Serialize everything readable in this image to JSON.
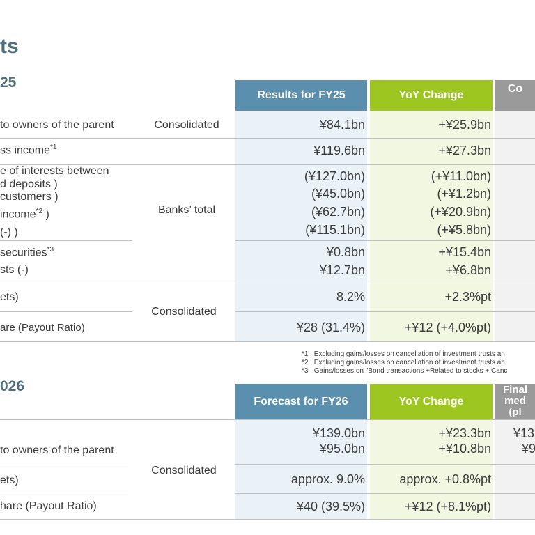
{
  "page_title": "ts",
  "section1": {
    "title": "25",
    "headers": [
      "Results for FY25",
      "YoY Change",
      "Co"
    ],
    "rows": [
      {
        "label": "to owners of the parent",
        "scope": "Consolidated",
        "value": "¥84.1bn",
        "change": "+¥25.9bn"
      },
      {
        "label": "ss income",
        "label_sup": "*1",
        "value": "¥119.6bn",
        "change": "+¥27.3bn"
      },
      {
        "label": "e of interests between",
        "label2": "d deposits )",
        "label3": "customers )",
        "label4": "income",
        "label4_sup": "*2",
        "label4_tail": " )",
        "label5": "(-) )",
        "scope": "Banks’ total",
        "values": [
          "(¥127.0bn)",
          "(¥45.0bn)",
          "(¥62.7bn)",
          "(¥115.1bn)"
        ],
        "changes": [
          "(+¥11.0bn)",
          "(+¥1.2bn)",
          "(+¥20.9bn)",
          "(+¥5.8bn)"
        ]
      },
      {
        "label": "securities",
        "label_sup": "*3",
        "label2": "sts (-)",
        "values": [
          "¥0.8bn",
          "¥12.7bn"
        ],
        "changes": [
          "+¥15.4bn",
          "+¥6.8bn"
        ]
      },
      {
        "label": "ets)",
        "scope": "Consolidated",
        "value": "8.2%",
        "change": "+2.3%pt"
      },
      {
        "label": "are (Payout Ratio)",
        "value": "¥28 (31.4%)",
        "change": "+¥12 (+4.0%pt)"
      }
    ],
    "notes": [
      {
        "mark": "*1",
        "text": "Excluding gains/losses on cancellation of investment trusts an"
      },
      {
        "mark": "*2",
        "text": "Excluding gains/losses on cancellation of investment trusts an"
      },
      {
        "mark": "*3",
        "text": "Gains/losses on \"Bond transactions +Related to stocks + Canc"
      }
    ]
  },
  "section2": {
    "title": "026",
    "headers": [
      "Forecast for FY26",
      "YoY Change",
      "Final",
      "med",
      "(pl"
    ],
    "rows": [
      {
        "label": "to owners of the parent",
        "scope": "Consolidated",
        "values": [
          "¥139.0bn",
          "¥95.0bn"
        ],
        "changes": [
          "+¥23.3bn",
          "+¥10.8bn"
        ],
        "plan": [
          "¥13",
          "¥9"
        ]
      },
      {
        "label": "ets)",
        "value": "approx. 9.0%",
        "change": "approx. +0.8%pt"
      },
      {
        "label": "hare (Payout Ratio)",
        "value": "¥40 (39.5%)",
        "change": "+¥12 (+8.1%pt)"
      }
    ]
  },
  "colors": {
    "blue_header": "#5b8fae",
    "green_header": "#9ec620",
    "gray_header": "#9a9a9a",
    "title": "#4f6f7f"
  }
}
